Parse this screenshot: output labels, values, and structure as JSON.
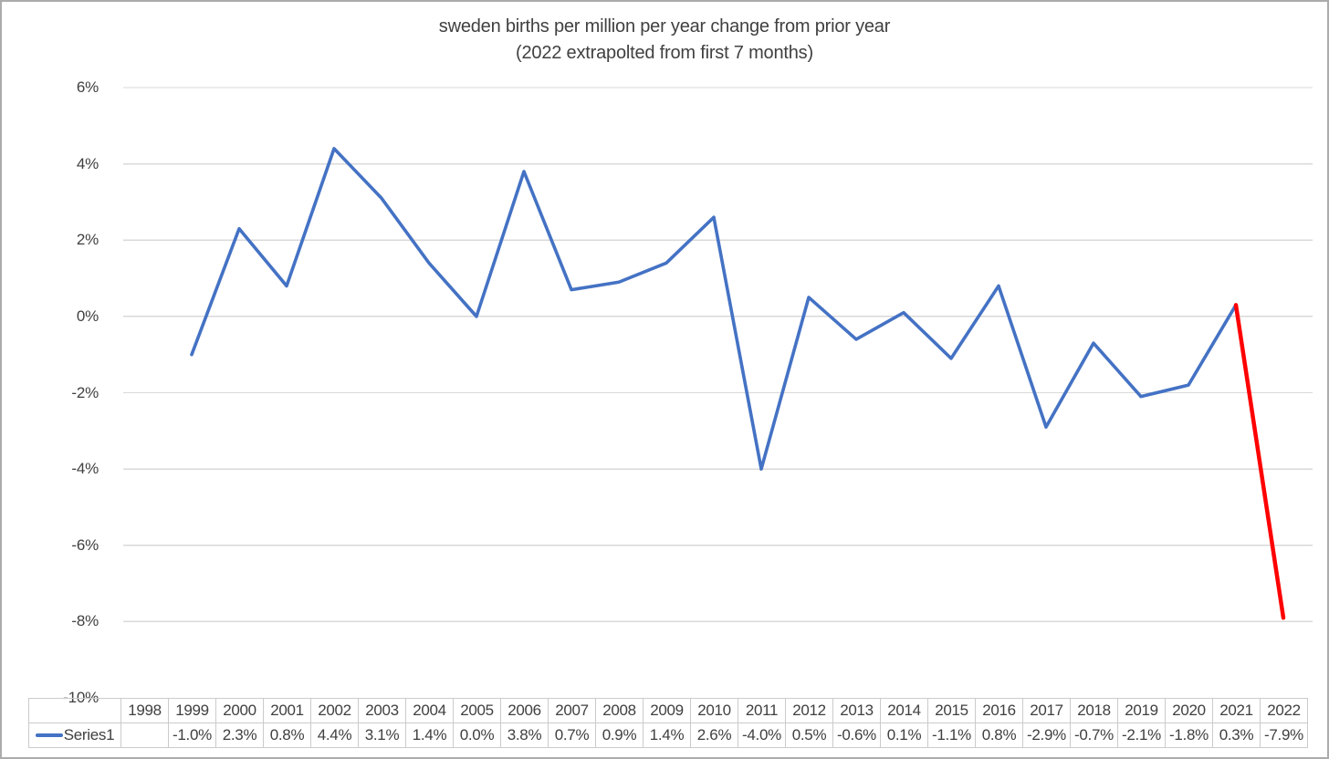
{
  "chart_data": {
    "type": "line",
    "title": "sweden births per million per year change from prior year",
    "subtitle": "(2022 extrapolted from first 7 months)",
    "categories": [
      "1998",
      "1999",
      "2000",
      "2001",
      "2002",
      "2003",
      "2004",
      "2005",
      "2006",
      "2007",
      "2008",
      "2009",
      "2010",
      "2011",
      "2012",
      "2013",
      "2014",
      "2015",
      "2016",
      "2017",
      "2018",
      "2019",
      "2020",
      "2021",
      "2022"
    ],
    "series": [
      {
        "name": "Series1",
        "color": "#4472C4",
        "values": [
          null,
          -1.0,
          2.3,
          0.8,
          4.4,
          3.1,
          1.4,
          0.0,
          3.8,
          0.7,
          0.9,
          1.4,
          2.6,
          -4.0,
          0.5,
          -0.6,
          0.1,
          -1.1,
          0.8,
          -2.9,
          -0.7,
          -2.1,
          -1.8,
          0.3,
          -7.9
        ],
        "display_values": [
          "",
          "-1.0%",
          "2.3%",
          "0.8%",
          "4.4%",
          "3.1%",
          "1.4%",
          "0.0%",
          "3.8%",
          "0.7%",
          "0.9%",
          "1.4%",
          "2.6%",
          "-4.0%",
          "0.5%",
          "-0.6%",
          "0.1%",
          "-1.1%",
          "0.8%",
          "-2.9%",
          "-0.7%",
          "-2.1%",
          "-1.8%",
          "0.3%",
          "-7.9%"
        ]
      }
    ],
    "highlight_segment": {
      "from_category": "2021",
      "to_category": "2022",
      "color": "#FF0000"
    },
    "ylim": [
      -10,
      6
    ],
    "yticks": [
      6,
      4,
      2,
      0,
      -2,
      -4,
      -6,
      -8,
      -10
    ],
    "ytick_labels": [
      "6%",
      "4%",
      "2%",
      "0%",
      "-2%",
      "-4%",
      "-6%",
      "-8%",
      "-10%"
    ],
    "grid": true,
    "legend_position": "data-table-left"
  },
  "colors": {
    "gridline": "#d9d9d9",
    "table_border": "#cbcbcb",
    "text": "#404040",
    "frame_border": "#ababab"
  }
}
